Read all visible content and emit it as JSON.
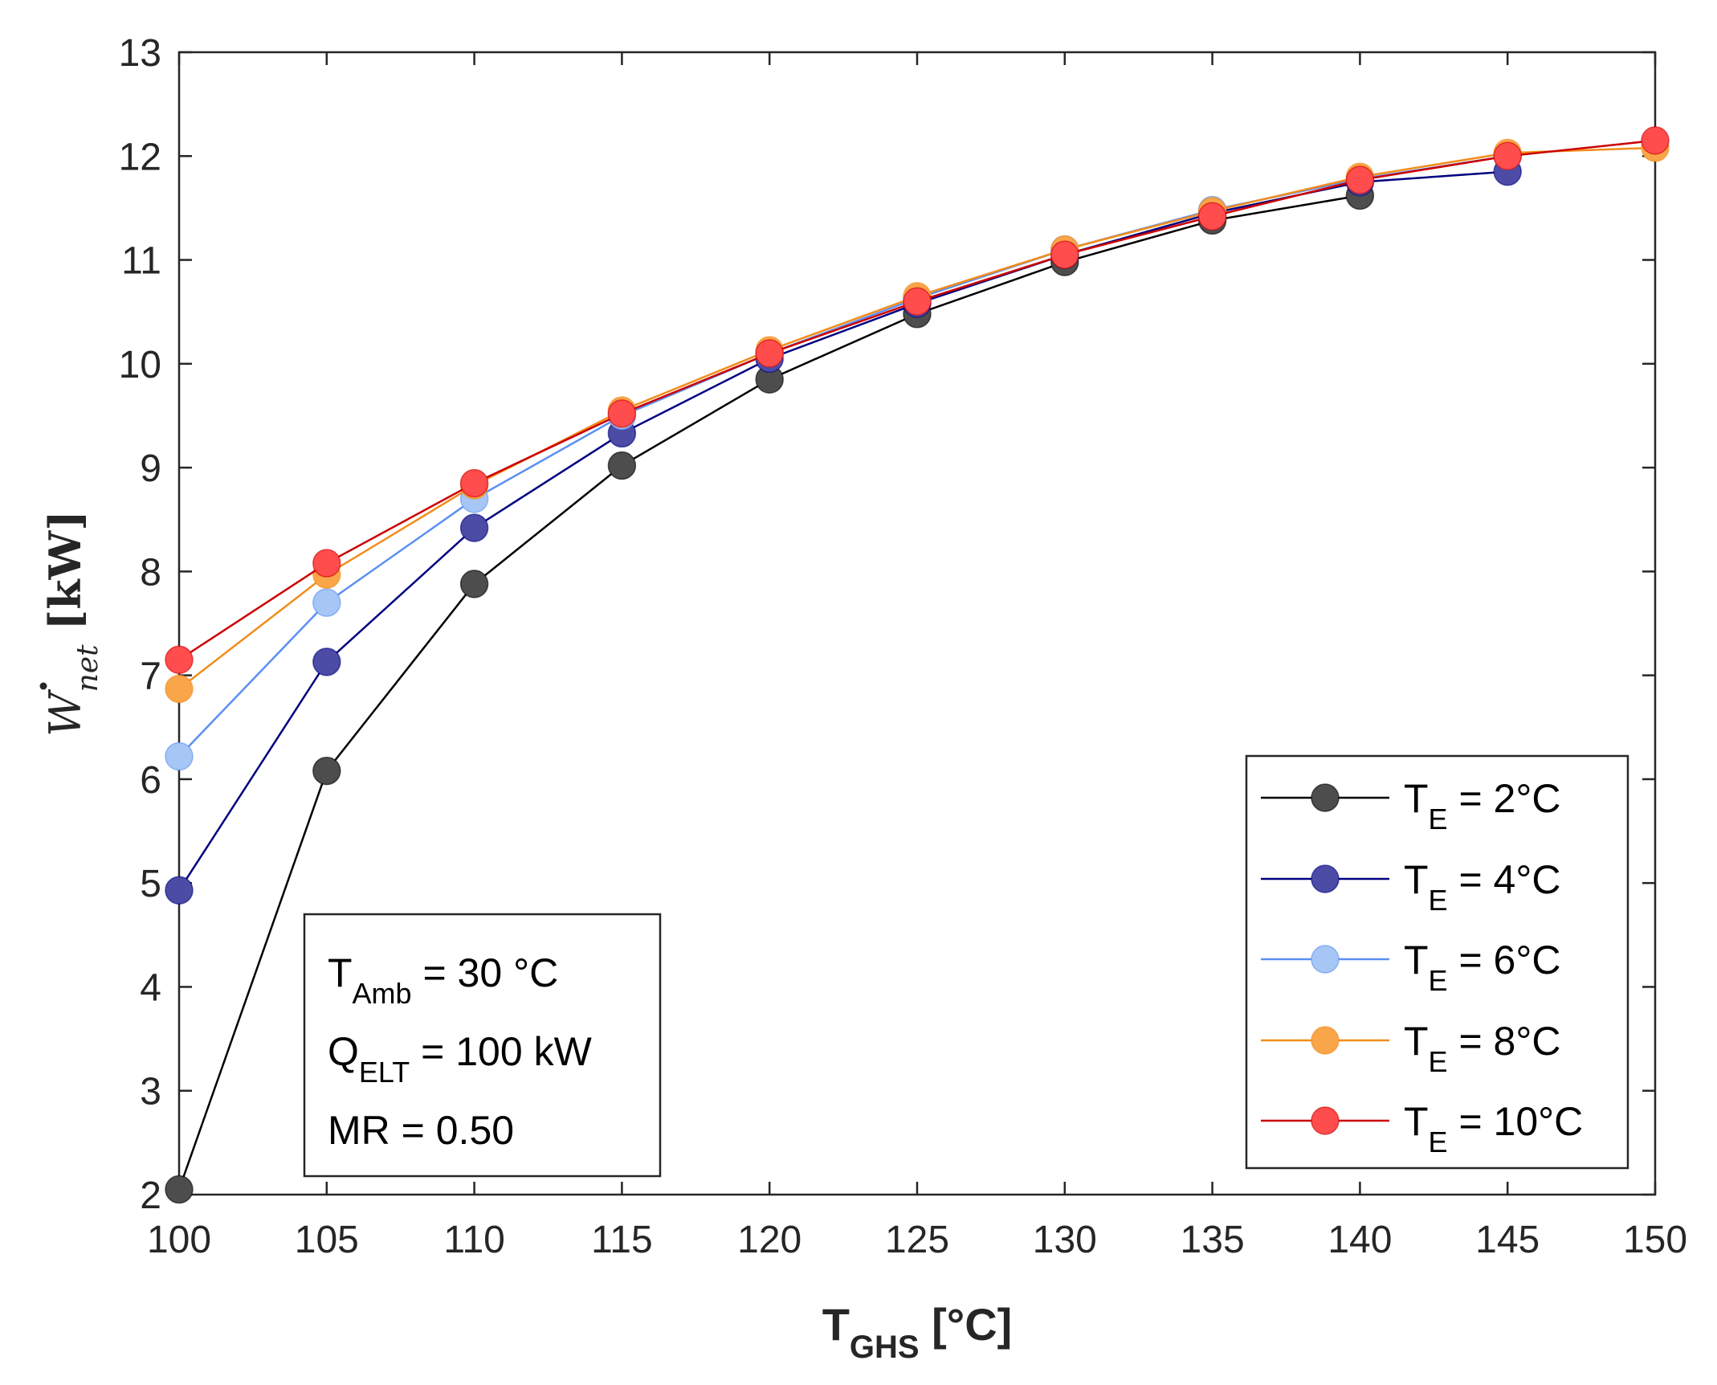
{
  "chart_data": {
    "type": "line",
    "title": "",
    "xlabel": {
      "main": "T",
      "sub": "GHS",
      "unit": " [°C]"
    },
    "ylabel": {
      "symbol": "W",
      "sub": "net",
      "unit": "[kW]"
    },
    "xlim": [
      100,
      150
    ],
    "ylim": [
      2,
      13
    ],
    "xticks": [
      100,
      105,
      110,
      115,
      120,
      125,
      130,
      135,
      140,
      145,
      150
    ],
    "yticks": [
      2,
      3,
      4,
      5,
      6,
      7,
      8,
      9,
      10,
      11,
      12,
      13
    ],
    "grid": false,
    "x": [
      100,
      105,
      110,
      115,
      120,
      125,
      130,
      135,
      140,
      145,
      150
    ],
    "series": [
      {
        "name": "T_E = 2°C",
        "label_main": "T",
        "label_sub": "E",
        "label_rest": " = 2°C",
        "line_color": "#000000",
        "marker_color": "#4d4d4d",
        "values": [
          2.05,
          6.08,
          7.88,
          9.02,
          9.85,
          10.48,
          10.98,
          11.38,
          11.62,
          null,
          null
        ]
      },
      {
        "name": "T_E = 4°C",
        "label_main": "T",
        "label_sub": "E",
        "label_rest": " = 4°C",
        "line_color": "#000080",
        "marker_color": "#4c4ca6",
        "values": [
          4.93,
          7.13,
          8.42,
          9.33,
          10.05,
          10.58,
          11.05,
          11.45,
          11.75,
          11.85,
          null
        ]
      },
      {
        "name": "T_E = 6°C",
        "label_main": "T",
        "label_sub": "E",
        "label_rest": " = 6°C",
        "line_color": "#5b8ff2",
        "marker_color": "#a6c6f5",
        "values": [
          6.22,
          7.7,
          8.7,
          9.5,
          10.1,
          10.63,
          11.1,
          11.48,
          11.78,
          12.0,
          null
        ]
      },
      {
        "name": "T_E = 8°C",
        "label_main": "T",
        "label_sub": "E",
        "label_rest": " = 8°C",
        "line_color": "#f28c1a",
        "marker_color": "#f9a54a",
        "values": [
          6.87,
          7.97,
          8.83,
          9.55,
          10.13,
          10.65,
          11.1,
          11.47,
          11.8,
          12.03,
          12.08
        ]
      },
      {
        "name": "T_E = 10°C",
        "label_main": "T",
        "label_sub": "E",
        "label_rest": " = 10°C",
        "line_color": "#cc0000",
        "marker_color": "#ff4d4d",
        "values": [
          7.15,
          8.08,
          8.85,
          9.52,
          10.1,
          10.6,
          11.05,
          11.42,
          11.77,
          12.0,
          12.15
        ]
      }
    ],
    "legend_position": "bottom-right",
    "annotation": [
      {
        "main": "T",
        "sub": "Amb",
        "rest": " = 30 °C"
      },
      {
        "main": "Q",
        "sub": "ELT",
        "rest": " = 100 kW"
      },
      {
        "main": "MR = 0.50",
        "sub": "",
        "rest": ""
      }
    ]
  }
}
